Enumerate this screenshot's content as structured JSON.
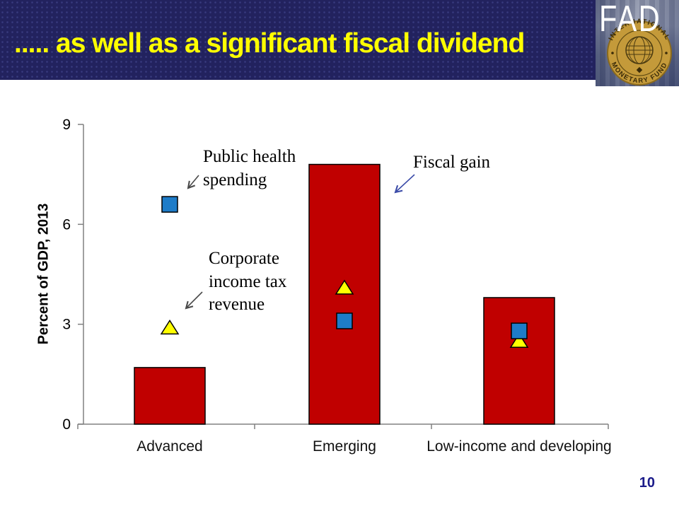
{
  "slide": {
    "title": "..... as well as a significant fiscal dividend",
    "page_number": "10",
    "banner_color": "#22225E",
    "title_color": "#FFFF00",
    "background_color": "#FFFFFF"
  },
  "logo": {
    "text": "FAD",
    "seal_text_top": "INTERNATIONAL",
    "seal_text_bottom": "MONETARY FUND",
    "seal_color": "#C49A3A"
  },
  "chart_data": {
    "type": "bar",
    "title": "",
    "xlabel": "",
    "ylabel": "Percent of GDP, 2013",
    "ylim": [
      0,
      9
    ],
    "yticks": [
      0,
      3,
      6,
      9
    ],
    "grid": false,
    "legend_position": "none",
    "categories": [
      "Advanced",
      "Emerging",
      "Low-income and developing"
    ],
    "series": [
      {
        "name": "Fiscal gain",
        "marker": "bar",
        "color": "#C00000",
        "values": [
          1.7,
          7.8,
          3.8
        ]
      },
      {
        "name": "Corporate income tax revenue",
        "marker": "triangle",
        "color": "#FFFF00",
        "values": [
          2.9,
          4.1,
          2.5
        ]
      },
      {
        "name": "Public health spending",
        "marker": "square",
        "color": "#1E7CC8",
        "values": [
          6.6,
          3.1,
          2.8
        ]
      }
    ],
    "axis_color": "#808080"
  },
  "annotations": [
    {
      "label": "Public health spending",
      "text": "Public health\nspending",
      "arrow_color": "#4a4a4a",
      "target_series": "Public health spending"
    },
    {
      "label": "Corporate income tax revenue",
      "text": "Corporate\nincome tax\nrevenue",
      "arrow_color": "#4a4a4a",
      "target_series": "Corporate income tax revenue"
    },
    {
      "label": "Fiscal gain",
      "text": "Fiscal gain",
      "arrow_color": "#3B4BA8",
      "target_series": "Fiscal gain"
    }
  ]
}
